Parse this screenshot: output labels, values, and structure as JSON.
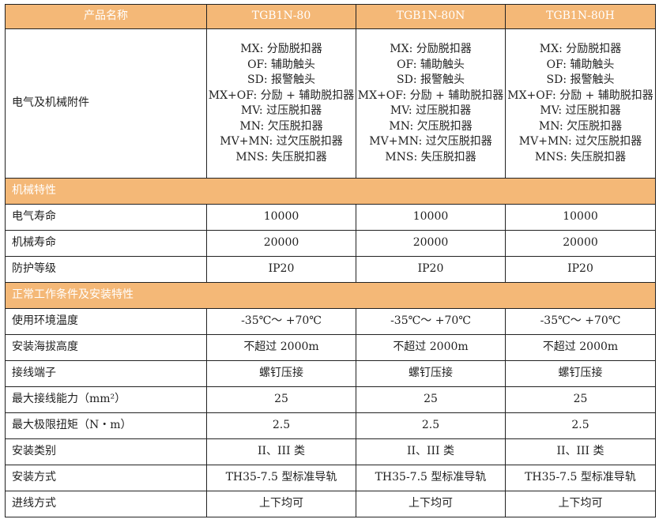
{
  "header": {
    "label": "产品名称",
    "models": [
      "TGB1N-80",
      "TGB1N-80N",
      "TGB1N-80H"
    ]
  },
  "accessories": {
    "label": "电气及机械附件",
    "lines": [
      "MX: 分励脱扣器",
      "OF: 辅助触头",
      "SD: 报警触头",
      "MX+OF: 分励 + 辅助脱扣器",
      "MV: 过压脱扣器",
      "MN: 欠压脱扣器",
      "MV+MN: 过欠压脱扣器",
      "MNS: 失压脱扣器"
    ]
  },
  "sections": [
    {
      "title": "机械特性",
      "rows": [
        {
          "label": "电气寿命",
          "values": [
            "10000",
            "10000",
            "10000"
          ]
        },
        {
          "label": "机械寿命",
          "values": [
            "20000",
            "20000",
            "20000"
          ]
        },
        {
          "label": "防护等级",
          "values": [
            "IP20",
            "IP20",
            "IP20"
          ]
        }
      ]
    },
    {
      "title": "正常工作条件及安装特性",
      "rows": [
        {
          "label": "使用环境温度",
          "values": [
            "-35℃～ +70℃",
            "-35℃～ +70℃",
            "-35℃～ +70℃"
          ]
        },
        {
          "label": "安装海拔高度",
          "values": [
            "不超过 2000m",
            "不超过 2000m",
            "不超过 2000m"
          ]
        },
        {
          "label": "接线端子",
          "values": [
            "螺钉压接",
            "螺钉压接",
            "螺钉压接"
          ]
        },
        {
          "label": "最大接线能力（mm²）",
          "values": [
            "25",
            "25",
            "25"
          ]
        },
        {
          "label": "最大极限扭矩（N・m）",
          "values": [
            "2.5",
            "2.5",
            "2.5"
          ]
        },
        {
          "label": "安装类别",
          "values": [
            "II、III 类",
            "II、III 类",
            "II、III 类"
          ]
        },
        {
          "label": "安装方式",
          "values": [
            "TH35-7.5 型标准导轨",
            "TH35-7.5 型标准导轨",
            "TH35-7.5 型标准导轨"
          ]
        },
        {
          "label": "进线方式",
          "values": [
            "上下均可",
            "上下均可",
            "上下均可"
          ]
        }
      ]
    }
  ]
}
